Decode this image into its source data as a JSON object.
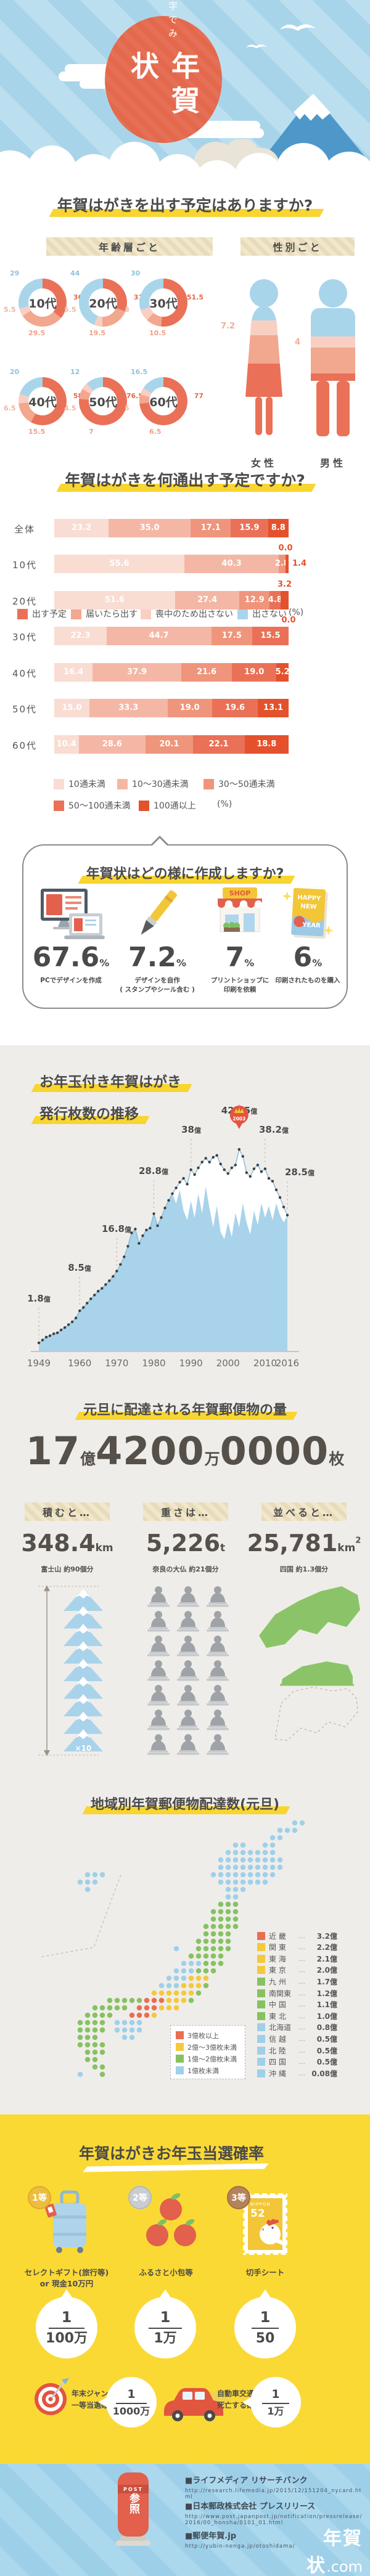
{
  "hero": {
    "subtitle": "数字でみる",
    "title": "年賀状"
  },
  "q1": {
    "title": "年賀はがきを出す予定はありますか?",
    "by_age": "年齢層ごと",
    "by_gender": "性別ごと",
    "unit": "(%)",
    "female": "女性",
    "male": "男性"
  },
  "q2": {
    "title": "年賀はがきを何通出す予定ですか?",
    "unit": "(%)"
  },
  "how": {
    "title": "年賀状はどの様に作成しますか?",
    "shop_sign": "SHOP",
    "card_lines": [
      "HAPPY",
      "NEW",
      "YEAR"
    ],
    "items": [
      {
        "value": "67.6",
        "unit": "%",
        "caption": [
          "PCでデザインを作成",
          ""
        ]
      },
      {
        "value": "7.2",
        "unit": "%",
        "caption": [
          "デザインを自作",
          "( スタンプやシール含む )"
        ]
      },
      {
        "value": "7",
        "unit": "%",
        "caption": [
          "プリントショップに",
          "印刷を依頼"
        ]
      },
      {
        "value": "6",
        "unit": "%",
        "caption": [
          "印刷されたものを購入",
          ""
        ]
      }
    ]
  },
  "issuance": {
    "title_lines": [
      "お年玉付き年賀はがき",
      "発行枚数の推移"
    ],
    "crown_year": "2003",
    "unit": "億"
  },
  "volume": {
    "title": "元旦に配達される年賀郵便物の量",
    "big": [
      {
        "n": "17",
        "u": "億"
      },
      {
        "n": "4200",
        "u": "万"
      },
      {
        "n": "0000",
        "u": "枚"
      }
    ],
    "stats": [
      {
        "header": "積むと…",
        "value": "348.4",
        "unit": "km",
        "caption": "富士山 約90個分"
      },
      {
        "header": "重さは…",
        "value": "5,226",
        "unit": "t",
        "caption": "奈良の大仏 約21個分"
      },
      {
        "header": "並べると…",
        "value": "25,781",
        "unit": "km",
        "unit_sup": "2",
        "caption": "四国 約1.3個分"
      }
    ],
    "fuji_times": "×10"
  },
  "map": {
    "title": "地域別年賀郵便物配達数(元旦)"
  },
  "lottery": {
    "title": "年賀はがきお年玉当選確率",
    "prizes": [
      {
        "rank": "1等",
        "caption": [
          "セレクトギフト(旅行等)",
          "or 現金10万円"
        ],
        "num": "1",
        "den": "100万"
      },
      {
        "rank": "2等",
        "caption": [
          "ふるさと小包等",
          ""
        ],
        "num": "1",
        "den": "1万"
      },
      {
        "rank": "3等",
        "caption": [
          "切手シート",
          ""
        ],
        "num": "1",
        "den": "50"
      }
    ],
    "stamp": {
      "country": "NIPPON",
      "value": "52"
    },
    "compares": [
      {
        "lines": [
          "年末ジャンボ宝くじ",
          "一等当選確率"
        ],
        "num": "1",
        "den": "1000万"
      },
      {
        "lines": [
          "自動車交通事故で",
          "死亡する確率"
        ],
        "num": "1",
        "den": "1万"
      }
    ]
  },
  "footer": {
    "bullet": "■",
    "ref": "参照",
    "post": "POST",
    "sources": [
      {
        "name": "ライフメディア リサーチバンク",
        "url": "http://research.lifemedia.jp/2015/12/151204_nycard.html"
      },
      {
        "name": "日本郵政株式会社 プレスリリース",
        "url": "http://www.post.japanpost.jp/notification/pressrelease/2016/00_honsha/0101_01.html"
      },
      {
        "name": "郵便年賀.jp",
        "url": "http://yubin-nenga.jp/otoshidama/"
      }
    ],
    "logo": {
      "text": "年賀状",
      "tld": ".com",
      "url": "http://www.nengajou.com/"
    }
  },
  "chart_data": [
    {
      "type": "pie",
      "title": "年賀はがきを出す予定はありますか?(年齢層ごと)",
      "unit": "%",
      "legend": [
        "出す予定",
        "届いたら出す",
        "喪中のため出さない",
        "出さない"
      ],
      "colors": [
        "#EA7157",
        "#F2A78F",
        "#F9CFC2",
        "#A9D5EB"
      ],
      "groups": [
        {
          "label": "10代",
          "values": [
            36,
            29.5,
            5.5,
            29
          ]
        },
        {
          "label": "20代",
          "values": [
            31,
            19.5,
            5.5,
            44
          ]
        },
        {
          "label": "30代",
          "values": [
            51.5,
            10.5,
            8,
            30
          ]
        },
        {
          "label": "40代",
          "values": [
            58,
            15.5,
            6.5,
            20
          ]
        },
        {
          "label": "50代",
          "values": [
            76.5,
            7,
            4.5,
            12
          ]
        },
        {
          "label": "60代",
          "values": [
            77,
            6.5,
            5,
            16.5
          ]
        }
      ]
    },
    {
      "type": "bar",
      "stacked": true,
      "title": "年賀はがきを出す予定はありますか?(性別ごと)",
      "unit": "%",
      "categories": [
        "女性",
        "男性"
      ],
      "series": [
        {
          "name": "出さない",
          "values": [
            16.8,
            28.2
          ]
        },
        {
          "name": "喪中のため出さない",
          "values": [
            7.2,
            4
          ]
        },
        {
          "name": "届いたら出す",
          "values": [
            15,
            17.3
          ]
        },
        {
          "name": "出す予定",
          "values": [
            61,
            50.5
          ]
        }
      ]
    },
    {
      "type": "bar",
      "stacked": true,
      "title": "年賀はがきを何通出す予定ですか?",
      "unit": "%",
      "categories": [
        "全体",
        "10代",
        "20代",
        "30代",
        "40代",
        "50代",
        "60代"
      ],
      "series": [
        {
          "name": "10通未満",
          "color": "#F9DCD2",
          "values": [
            23.2,
            55.6,
            51.6,
            22.3,
            16.4,
            15.0,
            10.4
          ]
        },
        {
          "name": "10〜30通未満",
          "color": "#F4B7A5",
          "values": [
            35.0,
            40.3,
            27.4,
            44.7,
            37.9,
            33.3,
            28.6
          ]
        },
        {
          "name": "30〜50通未満",
          "color": "#EF957B",
          "values": [
            17.1,
            2.8,
            12.9,
            17.5,
            21.6,
            19.0,
            20.1
          ]
        },
        {
          "name": "50〜100通未満",
          "color": "#EA7157",
          "values": [
            15.9,
            0.0,
            4.8,
            15.5,
            19.0,
            19.6,
            22.1
          ]
        },
        {
          "name": "100通以上",
          "color": "#E4512D",
          "values": [
            8.8,
            1.4,
            3.2,
            0.0,
            5.2,
            13.1,
            18.8
          ]
        }
      ]
    },
    {
      "type": "area",
      "title": "お年玉付き年賀はがき発行枚数の推移",
      "ylabel": "発行枚数(億枚)",
      "grid": false,
      "x_ticks": [
        1949,
        1960,
        1970,
        1980,
        1990,
        2000,
        2010,
        2016
      ],
      "annotations": [
        {
          "year": 1949,
          "label": "1.8"
        },
        {
          "year": 1960,
          "label": "8.5"
        },
        {
          "year": 1970,
          "label": "16.8"
        },
        {
          "year": 1980,
          "label": "28.8"
        },
        {
          "year": 1990,
          "label": "38"
        },
        {
          "year": 2003,
          "label": "42.25",
          "badge": "2003"
        },
        {
          "year": 2010,
          "label": "38.2"
        },
        {
          "year": 2016,
          "label": "28.5"
        }
      ],
      "series": {
        "years": [
          1949,
          1950,
          1951,
          1952,
          1953,
          1954,
          1955,
          1956,
          1957,
          1958,
          1959,
          1960,
          1961,
          1962,
          1963,
          1964,
          1965,
          1966,
          1967,
          1968,
          1969,
          1970,
          1971,
          1972,
          1973,
          1974,
          1975,
          1976,
          1977,
          1978,
          1979,
          1980,
          1981,
          1982,
          1983,
          1984,
          1985,
          1986,
          1987,
          1988,
          1989,
          1990,
          1991,
          1992,
          1993,
          1994,
          1995,
          1996,
          1997,
          1998,
          1999,
          2000,
          2001,
          2002,
          2003,
          2004,
          2005,
          2006,
          2007,
          2008,
          2009,
          2010,
          2011,
          2012,
          2013,
          2014,
          2015,
          2016
        ],
        "values": [
          1.8,
          2.4,
          3.0,
          3.3,
          3.7,
          3.9,
          4.5,
          5.0,
          5.6,
          6.2,
          7.0,
          8.5,
          9.2,
          10.1,
          11.0,
          11.8,
          12.6,
          13.2,
          14.0,
          14.8,
          15.7,
          16.8,
          18.2,
          19.8,
          22.0,
          24.8,
          25.6,
          22.6,
          24.2,
          25.4,
          25.8,
          28.8,
          26.3,
          28.0,
          30.0,
          31.6,
          33.0,
          34.2,
          35.4,
          36.2,
          35.0,
          38.0,
          37.0,
          38.4,
          39.6,
          40.4,
          39.6,
          40.6,
          41.0,
          39.2,
          38.0,
          37.2,
          38.4,
          39.0,
          42.25,
          40.8,
          37.4,
          36.6,
          38.2,
          39.0,
          37.6,
          38.2,
          36.2,
          35.6,
          33.8,
          32.2,
          30.2,
          28.5
        ]
      }
    },
    {
      "type": "heatmap",
      "title": "地域別年賀郵便物配達数(元旦)",
      "scale": [
        {
          "label": "3億枚以上",
          "color": "#EA6E51"
        },
        {
          "label": "2億〜3億枚未満",
          "color": "#F4C93B"
        },
        {
          "label": "1億〜2億枚未満",
          "color": "#86C262"
        },
        {
          "label": "1億枚未満",
          "color": "#9FD0EA"
        }
      ],
      "regions": [
        {
          "name": "近 畿",
          "value": "3.2億",
          "color": "#EA6E51"
        },
        {
          "name": "関 東",
          "value": "2.2億",
          "color": "#F4C93B"
        },
        {
          "name": "東 海",
          "value": "2.1億",
          "color": "#F4C93B"
        },
        {
          "name": "東 京",
          "value": "2.0億",
          "color": "#F4C93B"
        },
        {
          "name": "九 州",
          "value": "1.7億",
          "color": "#86C262"
        },
        {
          "name": "南関東",
          "value": "1.2億",
          "color": "#86C262"
        },
        {
          "name": "中 国",
          "value": "1.1億",
          "color": "#86C262"
        },
        {
          "name": "東 北",
          "value": "1.0億",
          "color": "#86C262"
        },
        {
          "name": "北海道",
          "value": "0.8億",
          "color": "#9FD0EA"
        },
        {
          "name": "信 越",
          "value": "0.5億",
          "color": "#9FD0EA"
        },
        {
          "name": "北 陸",
          "value": "0.5億",
          "color": "#9FD0EA"
        },
        {
          "name": "四 国",
          "value": "0.5億",
          "color": "#9FD0EA"
        },
        {
          "name": "沖 縄",
          "value": "0.08億",
          "color": "#9FD0EA"
        }
      ]
    }
  ]
}
